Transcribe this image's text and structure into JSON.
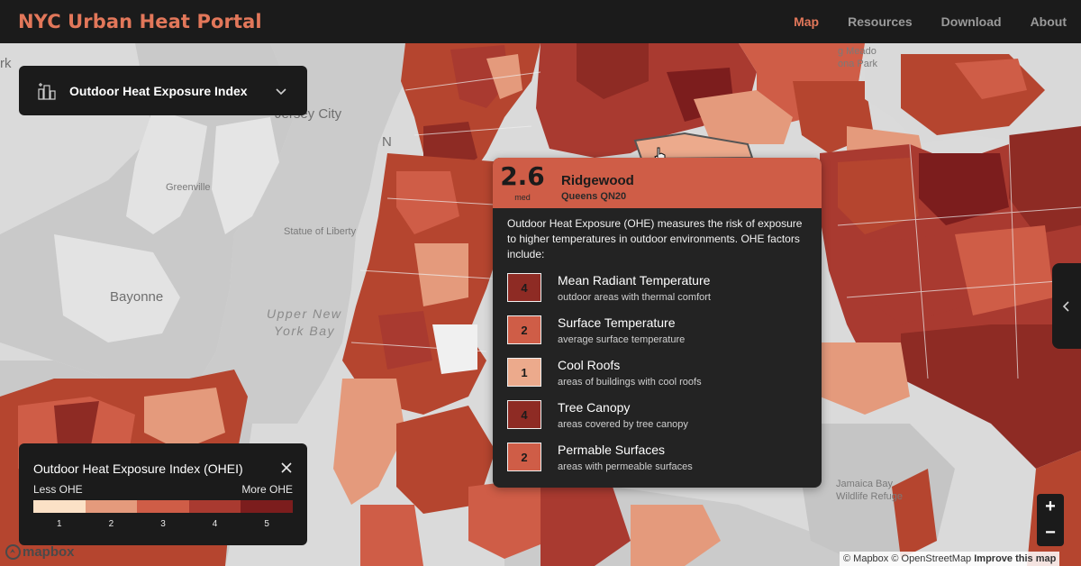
{
  "header": {
    "title": "NYC Urban Heat Portal",
    "nav": [
      {
        "label": "Map",
        "active": true
      },
      {
        "label": "Resources",
        "active": false
      },
      {
        "label": "Download",
        "active": false
      },
      {
        "label": "About",
        "active": false
      }
    ]
  },
  "layer_selector": {
    "label": "Outdoor Heat Exposure Index",
    "icon": "city-heat-icon"
  },
  "map_labels": {
    "jersey_city": "Jersey City",
    "greenville": "Greenville",
    "statue_of_liberty": "Statue of Liberty",
    "bayonne": "Bayonne",
    "upper_new_york_bay_1": "Upper New",
    "upper_new_york_bay_2": "York Bay",
    "jamaica_bay_1": "Jamaica Bay",
    "jamaica_bay_2": "Wildlife Refuge",
    "meadow_1": "g Meado",
    "meadow_2": "ona Park",
    "rk": "rk",
    "n": "N"
  },
  "popup": {
    "score": "2.6",
    "score_label": "med",
    "neighborhood": "Ridgewood",
    "district": "Queens QN20",
    "description": "Outdoor Heat Exposure (OHE) measures the risk of exposure to higher temperatures in outdoor environments. OHE factors include:",
    "factors": [
      {
        "value": "4",
        "name": "Mean Radiant Temperature",
        "desc": "outdoor areas with thermal comfort",
        "color": "#8e2b24"
      },
      {
        "value": "2",
        "name": "Surface Temperature",
        "desc": "average surface temperature",
        "color": "#cf5d47"
      },
      {
        "value": "1",
        "name": "Cool Roofs",
        "desc": "areas of buildings with cool roofs",
        "color": "#ecaa8c"
      },
      {
        "value": "4",
        "name": "Tree Canopy",
        "desc": "areas covered by tree canopy",
        "color": "#8e2b24"
      },
      {
        "value": "2",
        "name": "Permable Surfaces",
        "desc": "areas with permeable surfaces",
        "color": "#cf5d47"
      }
    ]
  },
  "legend": {
    "title": "Outdoor Heat Exposure Index (OHEI)",
    "less": "Less OHE",
    "more": "More OHE",
    "ticks": [
      "1",
      "2",
      "3",
      "4",
      "5"
    ],
    "colors": [
      "#fbe1c6",
      "#e49a7c",
      "#cf5d47",
      "#a93a30",
      "#7c1d1d"
    ]
  },
  "zoom": {
    "in": "+",
    "out": "−"
  },
  "attribution": {
    "logo": "mapbox",
    "mapbox": "© Mapbox",
    "osm": "© OpenStreetMap",
    "improve": "Improve this map"
  },
  "colors": {
    "accent": "#e2775a",
    "panel": "#1b1b1b"
  }
}
